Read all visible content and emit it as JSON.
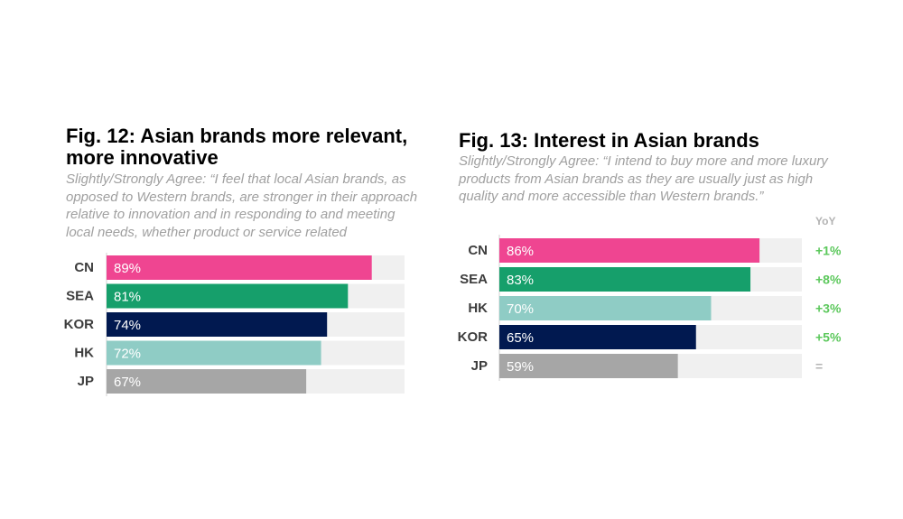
{
  "figures": [
    {
      "title": "Fig. 12: Asian brands more relevant, more innovative",
      "subtitle": "Slightly/Strongly Agree: “I feel that local Asian brands, as opposed to Western brands, are stronger in their approach relative to innovation and in responding to and meeting local needs, whether product or service related"
    },
    {
      "title": "Fig. 13: Interest in Asian brands",
      "subtitle": "Slightly/Strongly Agree: “I intend to buy more and more luxury products from Asian brands as they are usually just as high quality and more accessible than Western brands.”"
    }
  ],
  "colors": {
    "pink": "#ef4591",
    "green": "#169f6b",
    "navy": "#011950",
    "teal": "#8fccc5",
    "gray": "#a6a6a6",
    "track": "#f0f0f0",
    "yoy_green": "#5cc85c",
    "yoy_neutral": "#b3b3b3"
  },
  "chart_data": [
    {
      "type": "bar",
      "orientation": "horizontal",
      "title": "Fig. 12: Asian brands more relevant, more innovative",
      "categories": [
        "CN",
        "SEA",
        "KOR",
        "HK",
        "JP"
      ],
      "values": [
        89,
        81,
        74,
        72,
        67
      ],
      "labels": [
        "89%",
        "81%",
        "74%",
        "72%",
        "67%"
      ],
      "colors": [
        "#ef4591",
        "#169f6b",
        "#011950",
        "#8fccc5",
        "#a6a6a6"
      ],
      "xlim": [
        0,
        100
      ],
      "unit": "%"
    },
    {
      "type": "bar",
      "orientation": "horizontal",
      "title": "Fig. 13: Interest in Asian brands",
      "categories": [
        "CN",
        "SEA",
        "HK",
        "KOR",
        "JP"
      ],
      "values": [
        86,
        83,
        70,
        65,
        59
      ],
      "labels": [
        "86%",
        "83%",
        "70%",
        "65%",
        "59%"
      ],
      "colors": [
        "#ef4591",
        "#169f6b",
        "#8fccc5",
        "#011950",
        "#a6a6a6"
      ],
      "xlim": [
        0,
        100
      ],
      "unit": "%",
      "yoy_header": "YoY",
      "yoy": [
        "+1%",
        "+8%",
        "+3%",
        "+5%",
        "="
      ]
    }
  ]
}
